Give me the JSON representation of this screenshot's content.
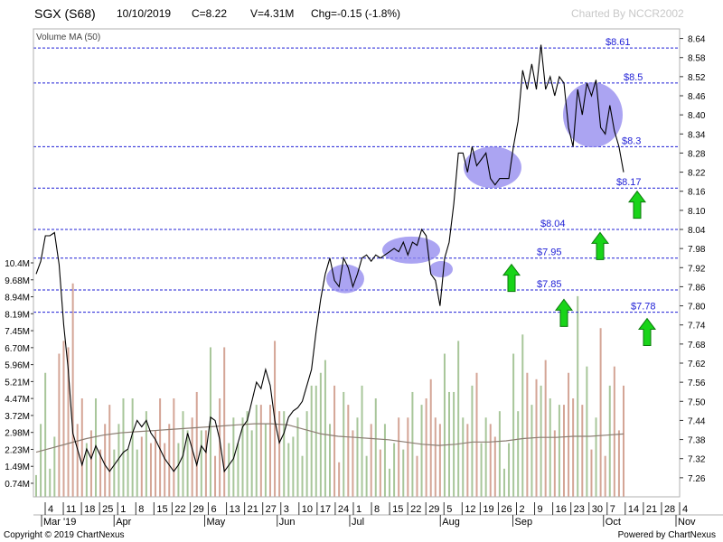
{
  "header": {
    "ticker": "SGX (S68)",
    "date": "10/10/2019",
    "close": "C=8.22",
    "volume": "V=4.31M",
    "change": "Chg=-0.15 (-1.8%)",
    "charted_by": "Charted By NCCR2002"
  },
  "footer": {
    "copyright": "Copyright © 2019 ChartNexus",
    "powered_by": "Powered by ChartNexus"
  },
  "colors": {
    "price_line": "#000000",
    "level_line": "#1f1fd6",
    "level_label": "#1f1fd6",
    "ellipse_fill": "#8f86ee",
    "arrow_green": "#19d419",
    "volume_up": "#a8c69a",
    "volume_down": "#d4a596",
    "volume_ma": "#8b7d72",
    "frame": "#b0b0b0"
  },
  "chart_data": {
    "type": "line",
    "title": "SGX (S68)",
    "price_ticks": [
      7.26,
      7.32,
      7.38,
      7.44,
      7.5,
      7.56,
      7.62,
      7.68,
      7.74,
      7.8,
      7.86,
      7.92,
      7.98,
      8.04,
      8.1,
      8.16,
      8.22,
      8.28,
      8.34,
      8.4,
      8.46,
      8.52,
      8.58,
      8.64
    ],
    "ylim": [
      7.2,
      8.67
    ],
    "volume_ticks": [
      "0.74M",
      "1.49M",
      "2.23M",
      "2.98M",
      "3.72M",
      "4.47M",
      "5.21M",
      "5.96M",
      "6.70M",
      "7.45M",
      "8.19M",
      "8.94M",
      "9.68M",
      "10.4M"
    ],
    "volume_label": "Volume MA (50)",
    "x_day_labels": [
      "4",
      "11",
      "18",
      "25",
      "1",
      "8",
      "15",
      "22",
      "29",
      "6",
      "13",
      "21",
      "27",
      "3",
      "10",
      "17",
      "24",
      "1",
      "8",
      "15",
      "22",
      "29",
      "5",
      "12",
      "19",
      "26",
      "2",
      "9",
      "16",
      "23",
      "30",
      "7",
      "14",
      "21",
      "28",
      "4"
    ],
    "x_month_labels": [
      "Mar '19",
      "Apr",
      "May",
      "Jun",
      "Jul",
      "Aug",
      "Sep",
      "Oct",
      "Nov"
    ],
    "price_series": {
      "name": "Close",
      "values": [
        7.9,
        7.94,
        8.02,
        8.02,
        8.03,
        7.93,
        7.74,
        7.6,
        7.4,
        7.35,
        7.3,
        7.35,
        7.32,
        7.36,
        7.33,
        7.3,
        7.28,
        7.3,
        7.32,
        7.34,
        7.35,
        7.4,
        7.44,
        7.42,
        7.44,
        7.4,
        7.38,
        7.35,
        7.32,
        7.3,
        7.28,
        7.3,
        7.33,
        7.4,
        7.35,
        7.3,
        7.36,
        7.34,
        7.45,
        7.44,
        7.38,
        7.28,
        7.3,
        7.32,
        7.37,
        7.42,
        7.44,
        7.5,
        7.56,
        7.54,
        7.6,
        7.55,
        7.44,
        7.37,
        7.4,
        7.45,
        7.47,
        7.48,
        7.5,
        7.55,
        7.6,
        7.72,
        7.82,
        7.9,
        7.95,
        7.88,
        7.86,
        7.95,
        7.92,
        7.86,
        7.9,
        7.95,
        7.96,
        7.94,
        7.96,
        7.95,
        7.96,
        7.97,
        7.98,
        7.97,
        8.0,
        7.96,
        8.0,
        7.99,
        8.04,
        8.02,
        7.9,
        7.88,
        7.8,
        7.95,
        8.0,
        8.12,
        8.28,
        8.28,
        8.22,
        8.3,
        8.24,
        8.26,
        8.28,
        8.2,
        8.18,
        8.2,
        8.2,
        8.2,
        8.3,
        8.38,
        8.54,
        8.48,
        8.56,
        8.48,
        8.62,
        8.48,
        8.52,
        8.46,
        8.52,
        8.5,
        8.36,
        8.3,
        8.48,
        8.4,
        8.5,
        8.46,
        8.51,
        8.36,
        8.34,
        8.43,
        8.35,
        8.3,
        8.22
      ]
    },
    "levels": [
      {
        "value": 8.61,
        "label": "$8.61"
      },
      {
        "value": 8.5,
        "label": "$8.5"
      },
      {
        "value": 8.3,
        "label": "$8.3"
      },
      {
        "value": 8.17,
        "label": "$8.17"
      },
      {
        "value": 8.04,
        "label": "$8.04"
      },
      {
        "value": 7.95,
        "label": "$7.95"
      },
      {
        "value": 7.85,
        "label": "$7.85"
      },
      {
        "value": 7.78,
        "label": "$7.78"
      }
    ],
    "volume_ma_values": [
      2.1,
      2.3,
      2.5,
      2.7,
      2.85,
      2.95,
      3.0,
      3.05,
      3.1,
      3.15,
      3.2,
      3.25,
      3.3,
      3.35,
      3.35,
      3.3,
      3.1,
      2.9,
      2.8,
      2.75,
      2.7,
      2.65,
      2.55,
      2.45,
      2.4,
      2.45,
      2.55,
      2.55,
      2.6,
      2.7,
      2.75,
      2.75,
      2.8,
      2.8,
      2.85,
      2.9
    ],
    "grid": false,
    "legend": "none"
  }
}
